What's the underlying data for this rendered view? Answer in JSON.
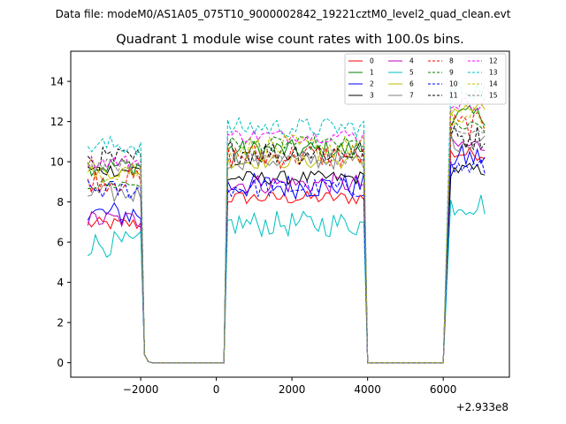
{
  "suptitle": "Data file: modeM0/AS1A05_075T10_9000002842_19221cztM0_level2_quad_clean.evt",
  "chart_data": {
    "type": "line",
    "title": "Quadrant 1 module wise count rates with 100.0s bins.",
    "xlabel": "",
    "ylabel": "",
    "offset_label": "+2.933e8",
    "xlim": [
      -3850,
      7750
    ],
    "ylim": [
      -0.72,
      15.5
    ],
    "xticks": [
      -2000,
      0,
      2000,
      4000,
      6000
    ],
    "xtick_labels": [
      "−2000",
      "0",
      "2000",
      "4000",
      "6000"
    ],
    "yticks": [
      0,
      2,
      4,
      6,
      8,
      10,
      12,
      14
    ],
    "ytick_labels": [
      "0",
      "2",
      "4",
      "6",
      "8",
      "10",
      "12",
      "14"
    ],
    "legend_position": "top-right",
    "segments": [
      {
        "start": -3400,
        "end": -2000,
        "step": 100
      },
      {
        "start": 300,
        "end": 3900,
        "step": 100
      },
      {
        "start": 6200,
        "end": 7100,
        "step": 100
      }
    ],
    "gaps_x": [
      -1900,
      -1800,
      -1700,
      4000,
      4100,
      4200,
      6000
    ],
    "gap_values": [
      0.4,
      0.05,
      0.0,
      0.0,
      0.0,
      0.0,
      0.0
    ],
    "gap_edges": [
      {
        "x": -1800,
        "value": 0.0
      },
      {
        "x": 200,
        "value": 0.0
      },
      {
        "x": 4100,
        "value": 0.0
      },
      {
        "x": 6000,
        "value": 0.0
      }
    ],
    "series": [
      {
        "name": "0",
        "color": "#ff0000",
        "dash": "solid",
        "levels": [
          6.9,
          8.2,
          10.4
        ]
      },
      {
        "name": "1",
        "color": "#008000",
        "dash": "solid",
        "levels": [
          9.8,
          10.6,
          12.3
        ]
      },
      {
        "name": "2",
        "color": "#0000ff",
        "dash": "solid",
        "levels": [
          7.4,
          8.8,
          10.2
        ]
      },
      {
        "name": "3",
        "color": "#000000",
        "dash": "solid",
        "levels": [
          9.6,
          9.2,
          9.6
        ]
      },
      {
        "name": "4",
        "color": "#bf00bf",
        "dash": "solid",
        "levels": [
          7.1,
          8.9,
          10.8
        ]
      },
      {
        "name": "5",
        "color": "#00bfbf",
        "dash": "solid",
        "levels": [
          5.9,
          6.9,
          7.9
        ]
      },
      {
        "name": "6",
        "color": "#bfbf00",
        "dash": "solid",
        "levels": [
          9.5,
          10.0,
          12.6
        ]
      },
      {
        "name": "7",
        "color": "#808080",
        "dash": "solid",
        "levels": [
          8.4,
          10.1,
          11.0
        ]
      },
      {
        "name": "8",
        "color": "#ff0000",
        "dash": "dashed",
        "levels": [
          9.1,
          10.3,
          11.8
        ]
      },
      {
        "name": "9",
        "color": "#008000",
        "dash": "dashed",
        "levels": [
          8.9,
          10.9,
          11.7
        ]
      },
      {
        "name": "10",
        "color": "#0000ff",
        "dash": "dashed",
        "levels": [
          8.6,
          8.7,
          9.7
        ]
      },
      {
        "name": "11",
        "color": "#000000",
        "dash": "dashed",
        "levels": [
          10.1,
          10.5,
          11.2
        ]
      },
      {
        "name": "12",
        "color": "#ff00ff",
        "dash": "dashed",
        "levels": [
          10.0,
          11.3,
          12.9
        ]
      },
      {
        "name": "13",
        "color": "#00bfbf",
        "dash": "dashed",
        "levels": [
          10.8,
          11.7,
          13.6
        ]
      },
      {
        "name": "14",
        "color": "#bfbf00",
        "dash": "dashed",
        "levels": [
          9.6,
          10.7,
          12.1
        ]
      },
      {
        "name": "15",
        "color": "#808080",
        "dash": "dashed",
        "levels": [
          9.8,
          10.2,
          11.4
        ]
      }
    ]
  }
}
